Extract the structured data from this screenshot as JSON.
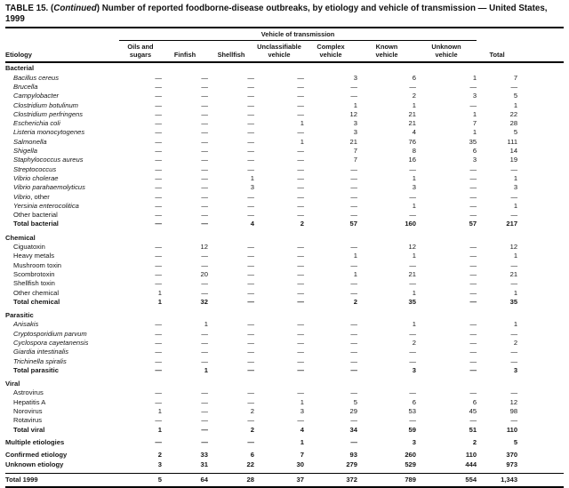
{
  "title": {
    "table_no": "TABLE 15.",
    "continued": "(Continued)",
    "text": "Number of reported foodborne-disease outbreaks, by etiology and vehicle of transmission — United States, 1999"
  },
  "table": {
    "header": {
      "etiology": "Etiology",
      "vehicle_span": "Vehicle of transmission",
      "columns": [
        "Oils and\nsugars",
        "Finfish",
        "Shellfish",
        "Unclassifiable\nvehicle",
        "Complex\nvehicle",
        "Known\nvehicle",
        "Unknown\nvehicle",
        "Total"
      ]
    },
    "sections": [
      {
        "header": "Bacterial",
        "rows": [
          {
            "label": "Bacillus cereus",
            "style": "italic",
            "values": [
              "—",
              "—",
              "—",
              "—",
              "3",
              "6",
              "1",
              "7"
            ]
          },
          {
            "label": "Brucella",
            "style": "italic",
            "values": [
              "—",
              "—",
              "—",
              "—",
              "—",
              "—",
              "—",
              "—"
            ]
          },
          {
            "label": "Campylobacter",
            "style": "italic",
            "values": [
              "—",
              "—",
              "—",
              "—",
              "—",
              "2",
              "3",
              "5"
            ]
          },
          {
            "label": "Clostridium botulinum",
            "style": "italic",
            "values": [
              "—",
              "—",
              "—",
              "—",
              "1",
              "1",
              "—",
              "1"
            ]
          },
          {
            "label": "Clostridium perfringens",
            "style": "italic",
            "values": [
              "—",
              "—",
              "—",
              "—",
              "12",
              "21",
              "1",
              "22"
            ]
          },
          {
            "label": "Escherichia coli",
            "style": "italic",
            "values": [
              "—",
              "—",
              "—",
              "1",
              "3",
              "21",
              "7",
              "28"
            ]
          },
          {
            "label": "Listeria monocytogenes",
            "style": "italic",
            "values": [
              "—",
              "—",
              "—",
              "—",
              "3",
              "4",
              "1",
              "5"
            ]
          },
          {
            "label": "Salmonella",
            "style": "italic",
            "values": [
              "—",
              "—",
              "—",
              "1",
              "21",
              "76",
              "35",
              "111"
            ]
          },
          {
            "label": "Shigella",
            "style": "italic",
            "values": [
              "—",
              "—",
              "—",
              "—",
              "7",
              "8",
              "6",
              "14"
            ]
          },
          {
            "label": "Staphylococcus aureus",
            "style": "italic",
            "values": [
              "—",
              "—",
              "—",
              "—",
              "7",
              "16",
              "3",
              "19"
            ]
          },
          {
            "label": "Streptococcus",
            "style": "italic",
            "values": [
              "—",
              "—",
              "—",
              "—",
              "—",
              "—",
              "—",
              "—"
            ]
          },
          {
            "label": "Vibrio cholerae",
            "style": "italic",
            "values": [
              "—",
              "—",
              "1",
              "—",
              "—",
              "1",
              "—",
              "1"
            ]
          },
          {
            "label": "Vibrio parahaemolyticus",
            "style": "italic",
            "values": [
              "—",
              "—",
              "3",
              "—",
              "—",
              "3",
              "—",
              "3"
            ]
          },
          {
            "label": "Vibrio",
            "suffix": ", other",
            "style": "italic",
            "values": [
              "—",
              "—",
              "—",
              "—",
              "—",
              "—",
              "—",
              "—"
            ]
          },
          {
            "label": "Yersinia enterocolitica",
            "style": "italic",
            "values": [
              "—",
              "—",
              "—",
              "—",
              "—",
              "1",
              "—",
              "1"
            ]
          },
          {
            "label": "Other bacterial",
            "style": "plain",
            "values": [
              "—",
              "—",
              "—",
              "—",
              "—",
              "—",
              "—",
              "—"
            ]
          },
          {
            "label": "Total bacterial",
            "style": "bold",
            "values": [
              "—",
              "—",
              "4",
              "2",
              "57",
              "160",
              "57",
              "217"
            ]
          }
        ]
      },
      {
        "header": "Chemical",
        "rows": [
          {
            "label": "Ciguatoxin",
            "style": "plain",
            "values": [
              "—",
              "12",
              "—",
              "—",
              "—",
              "12",
              "—",
              "12"
            ]
          },
          {
            "label": "Heavy metals",
            "style": "plain",
            "values": [
              "—",
              "—",
              "—",
              "—",
              "1",
              "1",
              "—",
              "1"
            ]
          },
          {
            "label": "Mushroom toxin",
            "style": "plain",
            "values": [
              "—",
              "—",
              "—",
              "—",
              "—",
              "—",
              "—",
              "—"
            ]
          },
          {
            "label": "Scombrotoxin",
            "style": "plain",
            "values": [
              "—",
              "20",
              "—",
              "—",
              "1",
              "21",
              "—",
              "21"
            ]
          },
          {
            "label": "Shellfish toxin",
            "style": "plain",
            "values": [
              "—",
              "—",
              "—",
              "—",
              "—",
              "—",
              "—",
              "—"
            ]
          },
          {
            "label": "Other chemical",
            "style": "plain",
            "values": [
              "1",
              "—",
              "—",
              "—",
              "—",
              "1",
              "—",
              "1"
            ]
          },
          {
            "label": "Total chemical",
            "style": "bold",
            "values": [
              "1",
              "32",
              "—",
              "—",
              "2",
              "35",
              "—",
              "35"
            ]
          }
        ]
      },
      {
        "header": "Parasitic",
        "rows": [
          {
            "label": "Anisakis",
            "style": "italic",
            "values": [
              "—",
              "1",
              "—",
              "—",
              "—",
              "1",
              "—",
              "1"
            ]
          },
          {
            "label": "Cryptosporidium parvum",
            "style": "italic",
            "values": [
              "—",
              "—",
              "—",
              "—",
              "—",
              "—",
              "—",
              "—"
            ]
          },
          {
            "label": "Cyclospora cayetanensis",
            "style": "italic",
            "values": [
              "—",
              "—",
              "—",
              "—",
              "—",
              "2",
              "—",
              "2"
            ]
          },
          {
            "label": "Giardia intestinalis",
            "style": "italic",
            "values": [
              "—",
              "—",
              "—",
              "—",
              "—",
              "—",
              "—",
              "—"
            ]
          },
          {
            "label": "Trichinella spiralis",
            "style": "italic",
            "values": [
              "—",
              "—",
              "—",
              "—",
              "—",
              "—",
              "—",
              "—"
            ]
          },
          {
            "label": "Total parasitic",
            "style": "bold",
            "values": [
              "—",
              "1",
              "—",
              "—",
              "—",
              "3",
              "—",
              "3"
            ]
          }
        ]
      },
      {
        "header": "Viral",
        "rows": [
          {
            "label": "Astrovirus",
            "style": "plain",
            "values": [
              "—",
              "—",
              "—",
              "—",
              "—",
              "—",
              "—",
              "—"
            ]
          },
          {
            "label": "Hepatitis A",
            "style": "plain",
            "values": [
              "—",
              "—",
              "—",
              "1",
              "5",
              "6",
              "6",
              "12"
            ]
          },
          {
            "label": "Norovirus",
            "style": "plain",
            "values": [
              "1",
              "—",
              "2",
              "3",
              "29",
              "53",
              "45",
              "98"
            ]
          },
          {
            "label": "Rotavirus",
            "style": "plain",
            "values": [
              "—",
              "—",
              "—",
              "—",
              "—",
              "—",
              "—",
              "—"
            ]
          },
          {
            "label": "Total viral",
            "style": "bold",
            "values": [
              "1",
              "—",
              "2",
              "4",
              "34",
              "59",
              "51",
              "110"
            ]
          }
        ]
      },
      {
        "header": null,
        "rows": [
          {
            "label": "Multiple etiologies",
            "style": "bold",
            "values": [
              "—",
              "—",
              "—",
              "1",
              "—",
              "3",
              "2",
              "5"
            ]
          }
        ]
      },
      {
        "header": null,
        "rows": [
          {
            "label": "Confirmed etiology",
            "style": "bold",
            "values": [
              "2",
              "33",
              "6",
              "7",
              "93",
              "260",
              "110",
              "370"
            ]
          },
          {
            "label": "Unknown etiology",
            "style": "bold",
            "values": [
              "3",
              "31",
              "22",
              "30",
              "279",
              "529",
              "444",
              "973"
            ]
          }
        ]
      },
      {
        "header": null,
        "top_rule": true,
        "rows": [
          {
            "label": "Total 1999",
            "style": "bold",
            "values": [
              "5",
              "64",
              "28",
              "37",
              "372",
              "789",
              "554",
              "1,343"
            ]
          }
        ]
      }
    ]
  }
}
